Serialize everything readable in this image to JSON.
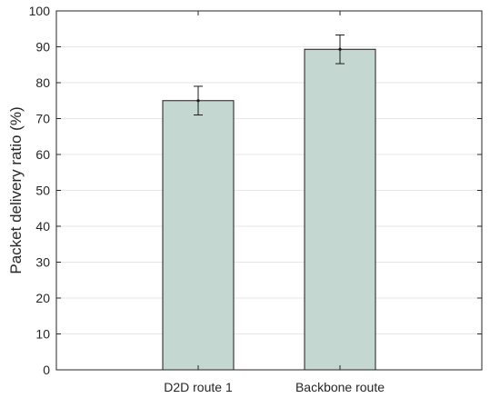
{
  "chart_data": {
    "type": "bar",
    "title": "",
    "xlabel": "",
    "ylabel": "Packet delivery ratio (%)",
    "categories": [
      "D2D route 1",
      "Backbone route"
    ],
    "values": [
      75,
      89.3
    ],
    "error_low": [
      71,
      85.3
    ],
    "error_high": [
      79,
      93.3
    ],
    "ylim": [
      0,
      100
    ],
    "yticks": [
      "0",
      "10",
      "20",
      "30",
      "40",
      "50",
      "60",
      "70",
      "80",
      "90",
      "100"
    ],
    "grid": true,
    "bar_color": "#c4d8d1",
    "bar_edge_color": "#1a1a1a",
    "axis_color": "#262626",
    "grid_color": "#e6e6e6"
  }
}
